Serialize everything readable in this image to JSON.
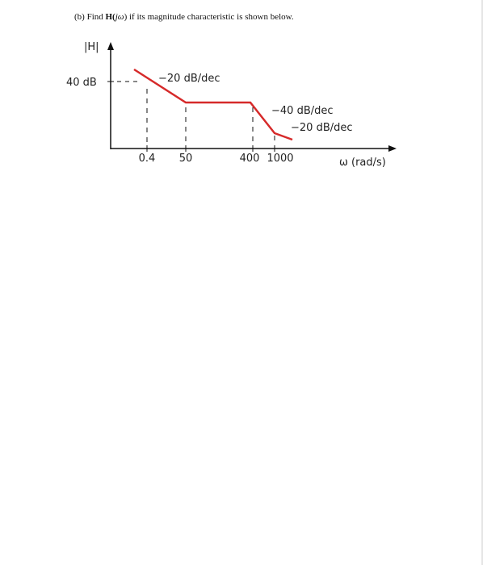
{
  "question": {
    "prefix": "(b) Find",
    "symbol": "H(",
    "argument": "jω",
    "rest": ") if its magnitude characteristic is shown below."
  },
  "diagram": {
    "y_axis_label": "|H|",
    "level_label": "40 dB",
    "x_axis_label": "ω (rad/s)",
    "x_tick_labels": [
      "0.4",
      "50",
      "400",
      "1000"
    ],
    "slope_labels": [
      "−20 dB/dec",
      "−40 dB/dec",
      "−20 dB/dec"
    ]
  }
}
